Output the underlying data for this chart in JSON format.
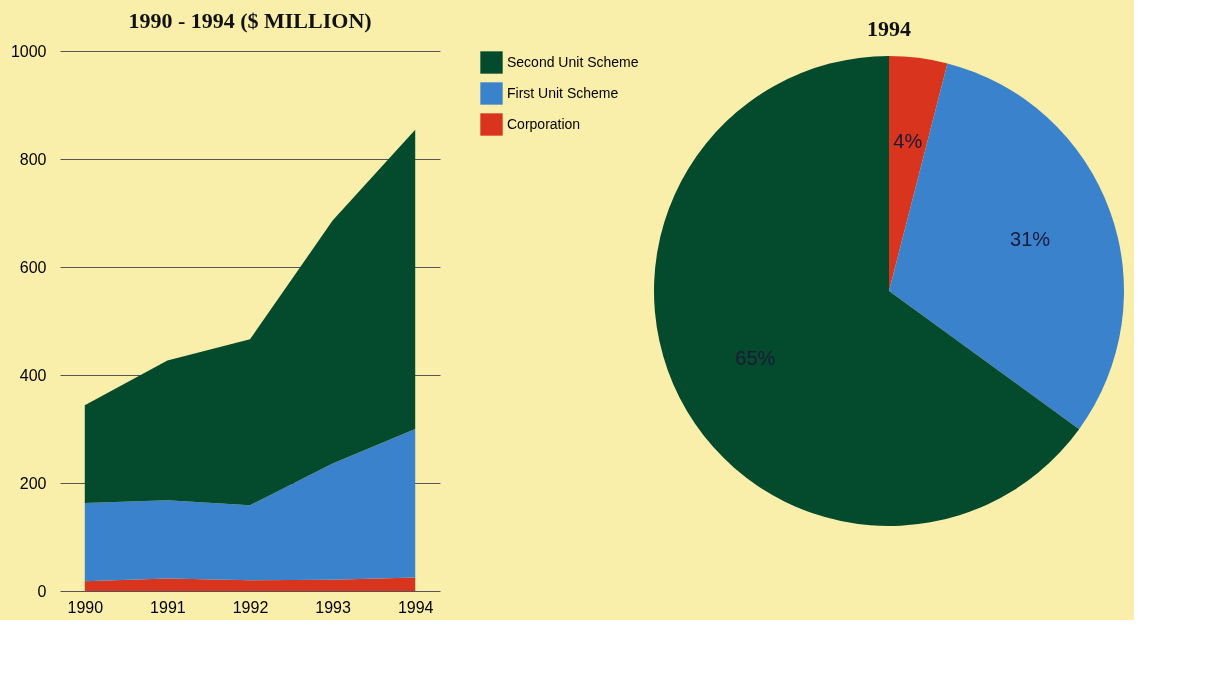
{
  "chart_data": [
    {
      "type": "area",
      "title": "1990 - 1994 ($ MILLION)",
      "stacked": true,
      "categories": [
        "1990",
        "1991",
        "1992",
        "1993",
        "1994"
      ],
      "series": [
        {
          "name": "Corporation",
          "color": "#d8341e",
          "values": [
            18,
            23,
            20,
            21,
            25
          ]
        },
        {
          "name": "First Unit Scheme",
          "color": "#3a83cc",
          "values": [
            145,
            145,
            139,
            215,
            275
          ]
        },
        {
          "name": "Second Unit Scheme",
          "color": "#044a2c",
          "values": [
            181,
            259,
            307,
            450,
            554
          ]
        }
      ],
      "ylim": [
        0,
        1000
      ],
      "yticks": [
        0,
        200,
        400,
        600,
        800,
        1000
      ],
      "grid": "y",
      "legend": "right"
    },
    {
      "type": "pie",
      "title": "1994",
      "categories": [
        null,
        null,
        null
      ],
      "values": [
        4,
        31,
        65
      ],
      "colors": [
        "#d8341e",
        "#3a83cc",
        "#044a2c"
      ],
      "value_labels": [
        "4%",
        "31%",
        "65%"
      ],
      "legend": false
    }
  ]
}
